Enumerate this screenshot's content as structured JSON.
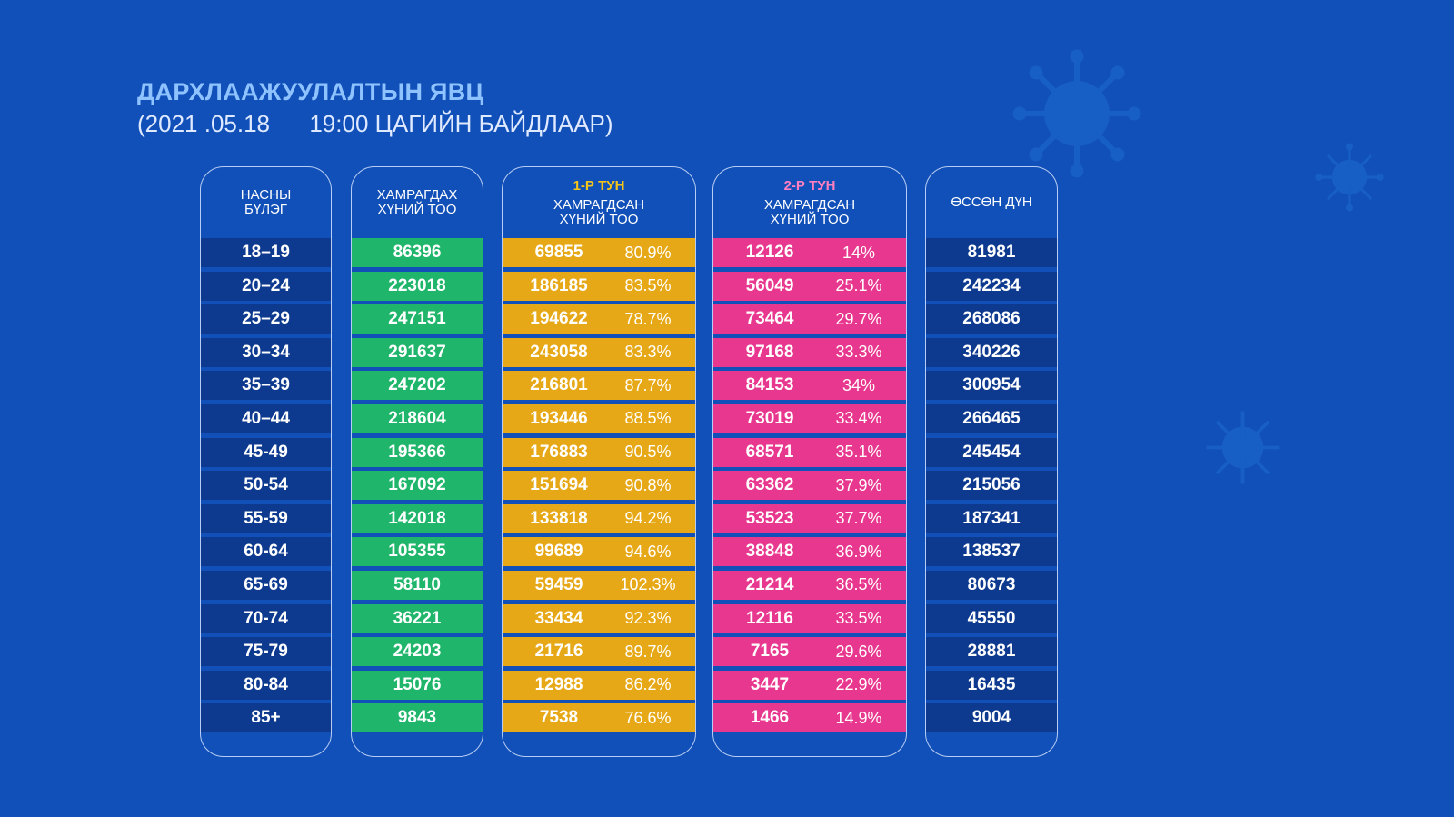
{
  "title": "ДАРХЛААЖУУЛАЛТЫН ЯВЦ",
  "subtitle": "(2021 .05.18      19:00 ЦАГИЙН БАЙДЛААР)",
  "headers": {
    "age": "НАСНЫ БҮЛЭГ",
    "covered": "ХАМРАГДАХ ХҮНИЙ ТОО",
    "dose1_label": "1-Р ТУН",
    "dose1_text": "ХАМРАГДСАН ХҮНИЙ ТОО",
    "dose2_label": "2-Р ТУН",
    "dose2_text": "ХАМРАГДСАН ХҮНИЙ ТОО",
    "remaining": "ӨССӨН ДҮН"
  },
  "colors": {
    "background": "#1150b8",
    "navy": "#0d3a8f",
    "green": "#1fb56a",
    "yellow": "#e6a816",
    "pink": "#e8378e",
    "dose1_label": "#f5c518",
    "dose2_label": "#ff7fc0",
    "title": "#8ec3ff"
  },
  "chart_data": {
    "type": "table",
    "columns": [
      "НАСНЫ БҮЛЭГ",
      "ХАМРАГДАХ ХҮНИЙ ТОО",
      "1-Р ТУН ХАМРАГДСАН ХҮНИЙ ТОО",
      "",
      "2-Р ТУН ХАМРАГДСАН ХҮНИЙ ТОО",
      "",
      "ӨССӨН ДҮН"
    ],
    "rows": [
      {
        "age": "18–19",
        "covered": "86396",
        "dose1": "69855",
        "dose1_pct": "80.9%",
        "dose2": "12126",
        "dose2_pct": "14%",
        "remaining": "81981"
      },
      {
        "age": "20–24",
        "covered": "223018",
        "dose1": "186185",
        "dose1_pct": "83.5%",
        "dose2": "56049",
        "dose2_pct": "25.1%",
        "remaining": "242234"
      },
      {
        "age": "25–29",
        "covered": "247151",
        "dose1": "194622",
        "dose1_pct": "78.7%",
        "dose2": "73464",
        "dose2_pct": "29.7%",
        "remaining": "268086"
      },
      {
        "age": "30–34",
        "covered": "291637",
        "dose1": "243058",
        "dose1_pct": "83.3%",
        "dose2": "97168",
        "dose2_pct": "33.3%",
        "remaining": "340226"
      },
      {
        "age": "35–39",
        "covered": "247202",
        "dose1": "216801",
        "dose1_pct": "87.7%",
        "dose2": "84153",
        "dose2_pct": "34%",
        "remaining": "300954"
      },
      {
        "age": "40–44",
        "covered": "218604",
        "dose1": "193446",
        "dose1_pct": "88.5%",
        "dose2": "73019",
        "dose2_pct": "33.4%",
        "remaining": "266465"
      },
      {
        "age": "45-49",
        "covered": "195366",
        "dose1": "176883",
        "dose1_pct": "90.5%",
        "dose2": "68571",
        "dose2_pct": "35.1%",
        "remaining": "245454"
      },
      {
        "age": "50-54",
        "covered": "167092",
        "dose1": "151694",
        "dose1_pct": "90.8%",
        "dose2": "63362",
        "dose2_pct": "37.9%",
        "remaining": "215056"
      },
      {
        "age": "55-59",
        "covered": "142018",
        "dose1": "133818",
        "dose1_pct": "94.2%",
        "dose2": "53523",
        "dose2_pct": "37.7%",
        "remaining": "187341"
      },
      {
        "age": "60-64",
        "covered": "105355",
        "dose1": "99689",
        "dose1_pct": "94.6%",
        "dose2": "38848",
        "dose2_pct": "36.9%",
        "remaining": "138537"
      },
      {
        "age": "65-69",
        "covered": "58110",
        "dose1": "59459",
        "dose1_pct": "102.3%",
        "dose2": "21214",
        "dose2_pct": "36.5%",
        "remaining": "80673"
      },
      {
        "age": "70-74",
        "covered": "36221",
        "dose1": "33434",
        "dose1_pct": "92.3%",
        "dose2": "12116",
        "dose2_pct": "33.5%",
        "remaining": "45550"
      },
      {
        "age": "75-79",
        "covered": "24203",
        "dose1": "21716",
        "dose1_pct": "89.7%",
        "dose2": "7165",
        "dose2_pct": "29.6%",
        "remaining": "28881"
      },
      {
        "age": "80-84",
        "covered": "15076",
        "dose1": "12988",
        "dose1_pct": "86.2%",
        "dose2": "3447",
        "dose2_pct": "22.9%",
        "remaining": "16435"
      },
      {
        "age": "85+",
        "covered": "9843",
        "dose1": "7538",
        "dose1_pct": "76.6%",
        "dose2": "1466",
        "dose2_pct": "14.9%",
        "remaining": "9004"
      }
    ]
  }
}
